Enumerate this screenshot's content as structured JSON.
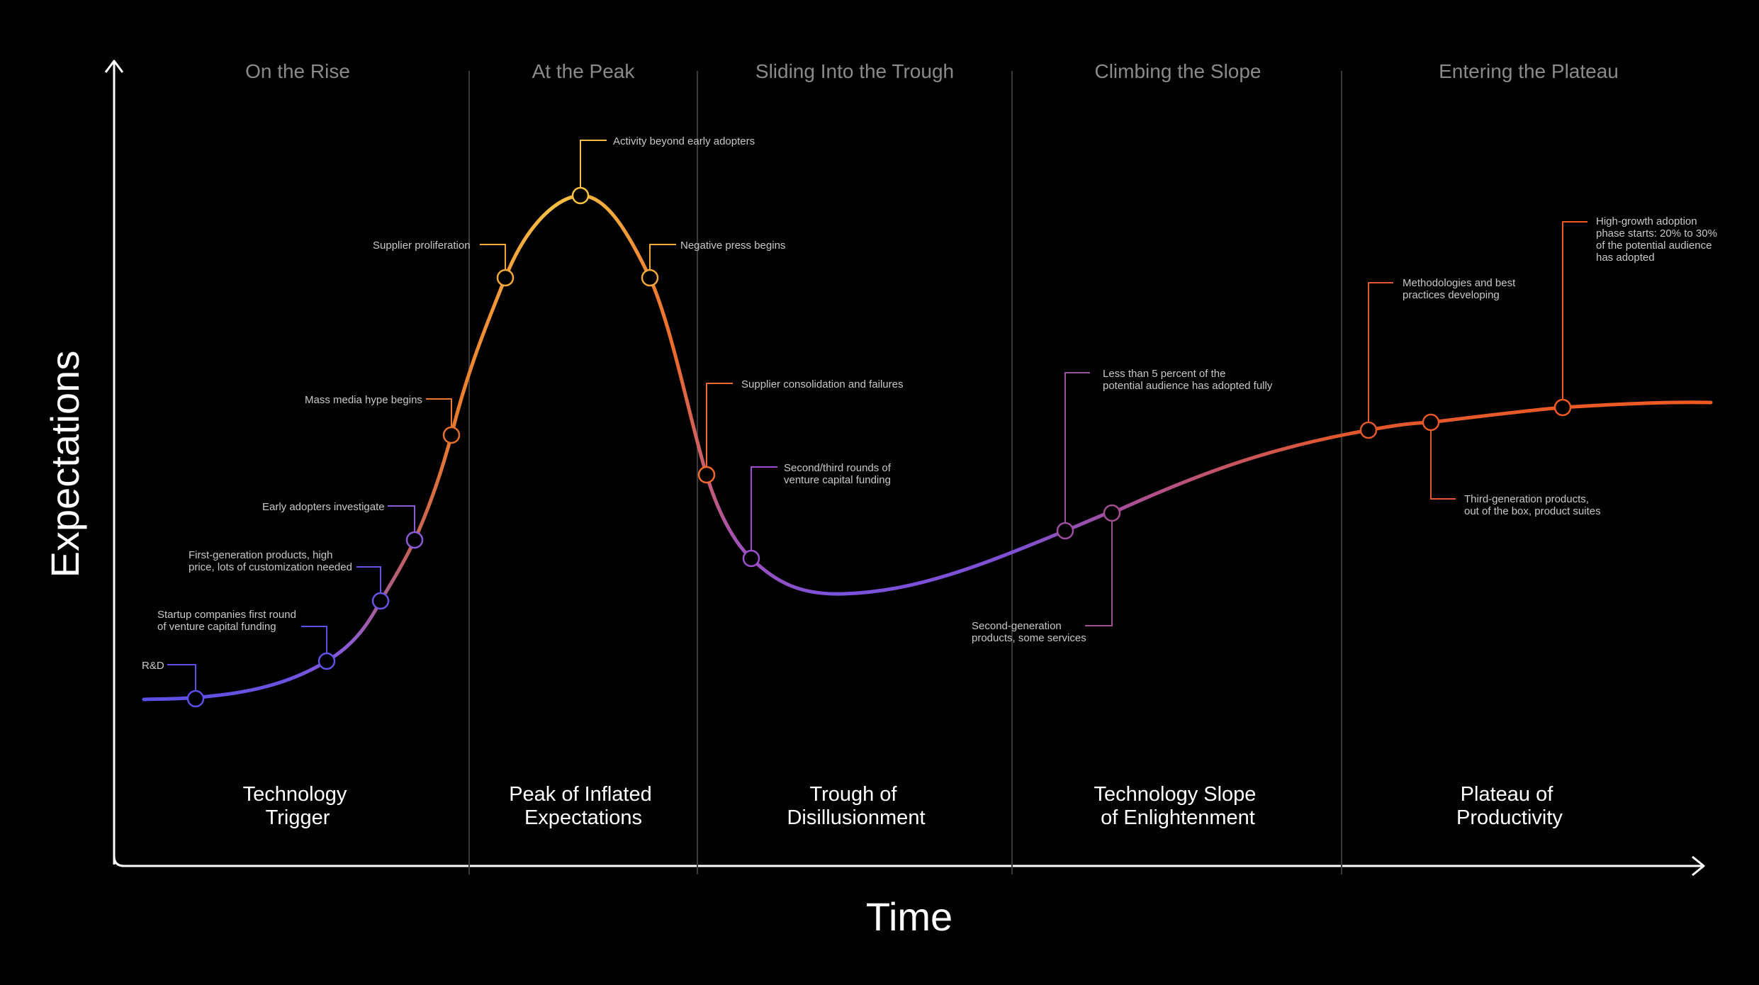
{
  "axes": {
    "y_label": "Expectations",
    "x_label": "Time"
  },
  "phases": [
    {
      "label": "On the Rise"
    },
    {
      "label": "At the Peak"
    },
    {
      "label": "Sliding Into the Trough"
    },
    {
      "label": "Climbing the Slope"
    },
    {
      "label": "Entering the Plateau"
    }
  ],
  "stages": [
    {
      "lines": [
        "Technology",
        "Trigger"
      ]
    },
    {
      "lines": [
        "Peak of Inflated",
        "Expectations"
      ]
    },
    {
      "lines": [
        "Trough of",
        "Disillusionment"
      ]
    },
    {
      "lines": [
        "Technology Slope",
        "of Enlightenment"
      ]
    },
    {
      "lines": [
        "Plateau of",
        "Productivity"
      ]
    }
  ],
  "milestones": [
    {
      "lines": [
        "R&D"
      ]
    },
    {
      "lines": [
        "Startup companies first round",
        "of venture capital funding"
      ]
    },
    {
      "lines": [
        "First-generation products, high",
        "price, lots of customization needed"
      ]
    },
    {
      "lines": [
        "Early adopters investigate"
      ]
    },
    {
      "lines": [
        "Mass media hype begins"
      ]
    },
    {
      "lines": [
        "Supplier proliferation"
      ]
    },
    {
      "lines": [
        "Activity beyond early adopters"
      ]
    },
    {
      "lines": [
        "Negative press begins"
      ]
    },
    {
      "lines": [
        "Supplier consolidation and failures"
      ]
    },
    {
      "lines": [
        "Second/third rounds of",
        "venture capital funding"
      ]
    },
    {
      "lines": [
        "Less than 5 percent of the",
        "potential audience has adopted fully"
      ]
    },
    {
      "lines": [
        "Second-generation",
        "products, some services"
      ]
    },
    {
      "lines": [
        "Methodologies and best",
        "practices developing"
      ]
    },
    {
      "lines": [
        "Third-generation products,",
        "out of the box, product suites"
      ]
    },
    {
      "lines": [
        "High-growth adoption",
        "phase starts: 20% to 30%",
        "of the potential audience",
        "has adopted"
      ]
    }
  ],
  "colors": {
    "background": "#000000",
    "axis": "#ffffff",
    "divider": "#3a3a3a",
    "curve_gradient": [
      "#5b4fe6",
      "#8a5ad8",
      "#e9792e",
      "#f7c044",
      "#ef6a2c",
      "#9c4fd0",
      "#6a4fe0",
      "#b0508c",
      "#e0582c",
      "#f05a22"
    ]
  }
}
